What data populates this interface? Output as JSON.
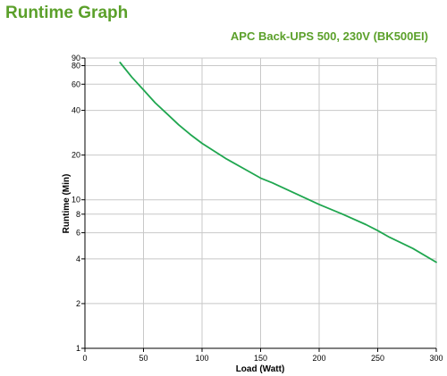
{
  "page": {
    "heading": "Runtime Graph"
  },
  "colors": {
    "accent": "#5ba02a",
    "series": "#1fa64f",
    "grid": "#c8c8c8",
    "axis": "#000000"
  },
  "chart_data": {
    "type": "line",
    "title": "APC Back-UPS 500, 230V (BK500EI)",
    "xlabel": "Load (Watt)",
    "ylabel": "Runtime (Min)",
    "xlim": [
      0,
      300
    ],
    "ylim": [
      1,
      90
    ],
    "yscale": "log",
    "grid": true,
    "legend": "none",
    "x_ticks": [
      0,
      50,
      100,
      150,
      200,
      250,
      300
    ],
    "y_ticks": [
      1,
      2,
      4,
      6,
      8,
      10,
      20,
      40,
      60,
      80,
      90
    ],
    "series": [
      {
        "x": [
          30,
          40,
          50,
          60,
          70,
          80,
          90,
          100,
          120,
          140,
          150,
          160,
          180,
          200,
          220,
          240,
          250,
          260,
          280,
          300
        ],
        "values": [
          84,
          67,
          55,
          45,
          38,
          32,
          27.5,
          24,
          19,
          15.5,
          14,
          13,
          11,
          9.3,
          8,
          6.8,
          6.2,
          5.6,
          4.7,
          3.8
        ]
      }
    ]
  }
}
